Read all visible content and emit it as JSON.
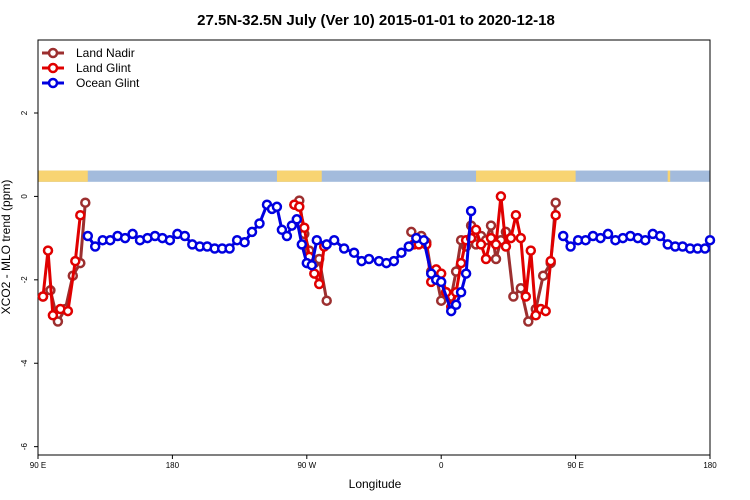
{
  "chart_data": {
    "type": "line",
    "title": "27.5N-32.5N July (Ver 10)   2015-01-01 to 2020-12-18",
    "xlabel": "Longitude",
    "ylabel": "XCO2 - MLO trend (ppm)",
    "xlim": [
      -90,
      180
    ],
    "ylim": [
      -6.2,
      3.75
    ],
    "x_ticks": [
      {
        "value": -90,
        "label": "90 E"
      },
      {
        "value": -36,
        "label": "180"
      },
      {
        "value": 18,
        "label": "90 W"
      },
      {
        "value": 72,
        "label": "0"
      },
      {
        "value": 126,
        "label": "90 E"
      },
      {
        "value": 180,
        "label": "180"
      }
    ],
    "y_ticks": [
      {
        "value": 2,
        "label": "2"
      },
      {
        "value": 0,
        "label": "0"
      },
      {
        "value": -2,
        "label": "-2"
      },
      {
        "value": -4,
        "label": "-4"
      },
      {
        "value": -6,
        "label": "-6"
      }
    ],
    "legend": {
      "position": "top-left",
      "entries": [
        "Land Nadir",
        "Land Glint",
        "Ocean Glint"
      ]
    },
    "land_ocean_strip": {
      "y_range": [
        0.35,
        0.62
      ],
      "ocean_color": "#a3bbdc",
      "land_color": "#f8d472",
      "land_segments": [
        [
          -90,
          -70
        ],
        [
          6,
          24
        ],
        [
          86,
          126
        ],
        [
          163,
          164
        ]
      ]
    },
    "series": [
      {
        "name": "Land Nadir",
        "color": "#9c2f2f",
        "segments": [
          [
            [
              -88,
              -2.4
            ],
            [
              -85,
              -2.25
            ],
            [
              -82,
              -3.0
            ],
            [
              -79,
              -2.7
            ],
            [
              -76,
              -1.9
            ],
            [
              -73,
              -1.6
            ],
            [
              -71,
              -0.15
            ]
          ],
          [
            [
              13,
              -0.2
            ],
            [
              15,
              -0.1
            ],
            [
              17,
              -0.9
            ],
            [
              19,
              -1.3
            ],
            [
              21,
              -1.6
            ],
            [
              23,
              -1.5
            ],
            [
              26,
              -2.5
            ]
          ],
          [
            [
              60,
              -0.85
            ],
            [
              62,
              -1.1
            ],
            [
              64,
              -0.95
            ],
            [
              66,
              -1.1
            ],
            [
              68,
              -1.8
            ],
            [
              70,
              -1.9
            ],
            [
              72,
              -2.5
            ],
            [
              74,
              -2.3
            ],
            [
              76,
              -2.4
            ],
            [
              78,
              -1.8
            ],
            [
              80,
              -1.05
            ],
            [
              82,
              -1.2
            ],
            [
              84,
              -0.7
            ],
            [
              86,
              -1.15
            ],
            [
              88,
              -0.95
            ],
            [
              90,
              -1.05
            ],
            [
              92,
              -0.7
            ],
            [
              94,
              -1.5
            ],
            [
              96,
              -1.05
            ],
            [
              98,
              -0.85
            ],
            [
              101,
              -2.4
            ],
            [
              104,
              -2.2
            ],
            [
              107,
              -3.0
            ],
            [
              110,
              -2.7
            ],
            [
              113,
              -1.9
            ],
            [
              116,
              -1.6
            ],
            [
              118,
              -0.15
            ]
          ]
        ]
      },
      {
        "name": "Land Glint",
        "color": "#e00000",
        "segments": [
          [
            [
              -88,
              -2.4
            ],
            [
              -86,
              -1.3
            ],
            [
              -84,
              -2.85
            ],
            [
              -81,
              -2.7
            ],
            [
              -78,
              -2.75
            ],
            [
              -75,
              -1.55
            ],
            [
              -73,
              -0.45
            ]
          ],
          [
            [
              13,
              -0.2
            ],
            [
              15,
              -0.25
            ],
            [
              17,
              -0.75
            ],
            [
              19,
              -1.45
            ],
            [
              21,
              -1.85
            ],
            [
              23,
              -2.1
            ],
            [
              25,
              -1.2
            ]
          ],
          [
            [
              61,
              -1.15
            ],
            [
              63,
              -1.15
            ],
            [
              66,
              -1.15
            ],
            [
              68,
              -2.05
            ],
            [
              70,
              -1.75
            ],
            [
              72,
              -1.85
            ],
            [
              74,
              -2.3
            ],
            [
              76,
              -2.65
            ],
            [
              78,
              -2.3
            ],
            [
              80,
              -1.6
            ],
            [
              82,
              -1.05
            ],
            [
              84,
              -1.0
            ],
            [
              86,
              -0.8
            ],
            [
              88,
              -1.15
            ],
            [
              90,
              -1.5
            ],
            [
              92,
              -1.0
            ],
            [
              94,
              -1.15
            ],
            [
              96,
              0.0
            ],
            [
              98,
              -1.2
            ],
            [
              100,
              -1.0
            ],
            [
              102,
              -0.45
            ],
            [
              104,
              -1.0
            ],
            [
              106,
              -2.4
            ],
            [
              108,
              -1.3
            ],
            [
              110,
              -2.85
            ],
            [
              112,
              -2.7
            ],
            [
              114,
              -2.75
            ],
            [
              116,
              -1.55
            ],
            [
              118,
              -0.45
            ]
          ]
        ]
      },
      {
        "name": "Ocean Glint",
        "color": "#0000e0",
        "segments": [
          [
            [
              -70,
              -0.95
            ],
            [
              -67,
              -1.2
            ],
            [
              -64,
              -1.05
            ],
            [
              -61,
              -1.05
            ],
            [
              -58,
              -0.95
            ],
            [
              -55,
              -1.0
            ],
            [
              -52,
              -0.9
            ],
            [
              -49,
              -1.05
            ],
            [
              -46,
              -1.0
            ],
            [
              -43,
              -0.95
            ],
            [
              -40,
              -1.0
            ],
            [
              -37,
              -1.05
            ],
            [
              -34,
              -0.9
            ],
            [
              -31,
              -0.95
            ],
            [
              -28,
              -1.15
            ],
            [
              -25,
              -1.2
            ],
            [
              -22,
              -1.2
            ],
            [
              -19,
              -1.25
            ],
            [
              -16,
              -1.25
            ],
            [
              -13,
              -1.25
            ],
            [
              -10,
              -1.05
            ],
            [
              -7,
              -1.1
            ],
            [
              -4,
              -0.85
            ],
            [
              -1,
              -0.65
            ],
            [
              2,
              -0.2
            ],
            [
              4,
              -0.3
            ],
            [
              6,
              -0.25
            ],
            [
              8,
              -0.8
            ],
            [
              10,
              -0.95
            ],
            [
              12,
              -0.7
            ],
            [
              14,
              -0.55
            ],
            [
              16,
              -1.15
            ],
            [
              18,
              -1.6
            ],
            [
              20,
              -1.65
            ],
            [
              22,
              -1.05
            ],
            [
              26,
              -1.15
            ],
            [
              29,
              -1.05
            ],
            [
              33,
              -1.25
            ],
            [
              37,
              -1.35
            ],
            [
              40,
              -1.55
            ],
            [
              43,
              -1.5
            ],
            [
              47,
              -1.55
            ],
            [
              50,
              -1.6
            ],
            [
              53,
              -1.55
            ],
            [
              56,
              -1.35
            ],
            [
              59,
              -1.2
            ],
            [
              62,
              -1.0
            ],
            [
              65,
              -1.05
            ],
            [
              68,
              -1.85
            ],
            [
              70,
              -2.0
            ],
            [
              72,
              -2.05
            ],
            [
              76,
              -2.75
            ],
            [
              78,
              -2.6
            ],
            [
              80,
              -2.3
            ],
            [
              82,
              -1.85
            ],
            [
              84,
              -0.35
            ]
          ],
          [
            [
              121,
              -0.95
            ],
            [
              124,
              -1.2
            ],
            [
              127,
              -1.05
            ],
            [
              130,
              -1.05
            ],
            [
              133,
              -0.95
            ],
            [
              136,
              -1.0
            ],
            [
              139,
              -0.9
            ],
            [
              142,
              -1.05
            ],
            [
              145,
              -1.0
            ],
            [
              148,
              -0.95
            ],
            [
              151,
              -1.0
            ],
            [
              154,
              -1.05
            ],
            [
              157,
              -0.9
            ],
            [
              160,
              -0.95
            ],
            [
              163,
              -1.15
            ],
            [
              166,
              -1.2
            ],
            [
              169,
              -1.2
            ],
            [
              172,
              -1.25
            ],
            [
              175,
              -1.25
            ],
            [
              178,
              -1.25
            ],
            [
              180,
              -1.05
            ]
          ]
        ]
      }
    ]
  }
}
